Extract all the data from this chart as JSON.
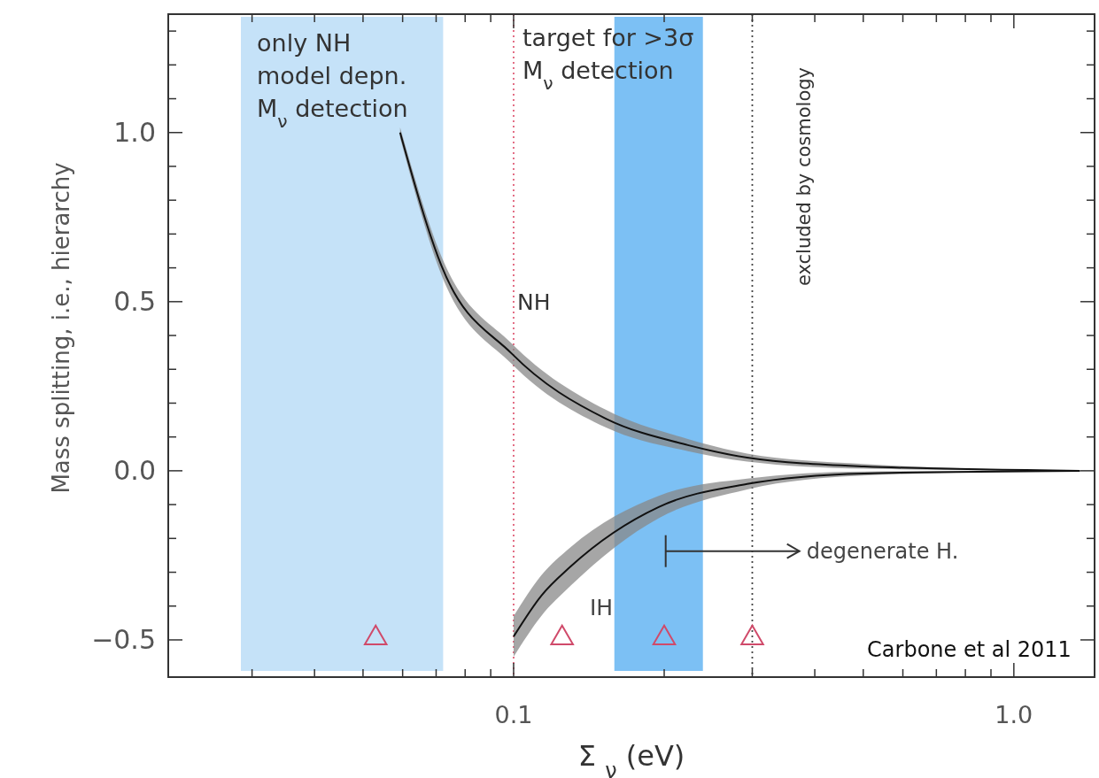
{
  "chart_data": {
    "type": "line",
    "xlabel": "Σ $_{ν}$ (eV)",
    "ylabel": "Mass splitting, i.e., hierarchy",
    "log": "x",
    "xlim": [
      0.0204,
      1.45
    ],
    "ylim": [
      -0.61,
      1.35
    ],
    "xticks": [
      {
        "value": 0.03,
        "label": null
      },
      {
        "value": 0.04,
        "label": null
      },
      {
        "value": 0.05,
        "label": null
      },
      {
        "value": 0.06,
        "label": null
      },
      {
        "value": 0.07,
        "label": null
      },
      {
        "value": 0.08,
        "label": null
      },
      {
        "value": 0.09,
        "label": null
      },
      {
        "value": 0.1,
        "label": "0.1"
      },
      {
        "value": 0.2,
        "label": null
      },
      {
        "value": 0.3,
        "label": null
      },
      {
        "value": 0.4,
        "label": null
      },
      {
        "value": 0.5,
        "label": null
      },
      {
        "value": 0.6,
        "label": null
      },
      {
        "value": 0.7,
        "label": null
      },
      {
        "value": 0.8,
        "label": null
      },
      {
        "value": 0.9,
        "label": null
      },
      {
        "value": 1.0,
        "label": "1.0"
      }
    ],
    "yticks": [
      {
        "value": -0.5,
        "label": "−0.5"
      },
      {
        "value": -0.4,
        "label": null
      },
      {
        "value": -0.3,
        "label": null
      },
      {
        "value": -0.2,
        "label": null
      },
      {
        "value": -0.1,
        "label": null
      },
      {
        "value": 0,
        "label": "0.0"
      },
      {
        "value": 0.1,
        "label": null
      },
      {
        "value": 0.2,
        "label": null
      },
      {
        "value": 0.3,
        "label": null
      },
      {
        "value": 0.4,
        "label": null
      },
      {
        "value": 0.5,
        "label": "0.5"
      },
      {
        "value": 0.6,
        "label": null
      },
      {
        "value": 0.7,
        "label": null
      },
      {
        "value": 0.8,
        "label": null
      },
      {
        "value": 0.9,
        "label": null
      },
      {
        "value": 1.0,
        "label": "1.0"
      },
      {
        "value": 1.1,
        "label": null
      },
      {
        "value": 1.2,
        "label": null
      },
      {
        "value": 1.3,
        "label": null
      }
    ],
    "bands": [
      {
        "axis": "x",
        "from": 0.0285,
        "to": 0.0723,
        "color": "#c5e2f8",
        "label": "only NH\nmodel depn.\nM$_{ν}$ detection"
      },
      {
        "axis": "x",
        "from": 0.159,
        "to": 0.239,
        "color": "#7cc0f4"
      }
    ],
    "ref_lines": [
      {
        "axis": "x",
        "value": 0.1,
        "color": "#e0607a",
        "line_style": "dotted"
      },
      {
        "axis": "x",
        "value": 0.3,
        "color": "#444444",
        "line_style": "dotted",
        "label": "excluded by cosmology"
      }
    ],
    "series": [
      {
        "color": "#111111",
        "line_style": "solid",
        "x": [
          0.0593,
          0.0717,
          0.0992,
          0.153,
          0.223,
          0.293,
          0.502,
          1.355
        ],
        "values": [
          1.0,
          0.607,
          0.346,
          0.154,
          0.076,
          0.039,
          0.013,
          0
        ],
        "lower": [
          0.985,
          0.58,
          0.316,
          0.128,
          0.058,
          0.027,
          0.006,
          0
        ],
        "upper": [
          1.015,
          0.634,
          0.376,
          0.18,
          0.094,
          0.051,
          0.02,
          0
        ]
      },
      {
        "color": "#111111",
        "line_style": "solid",
        "x": [
          0.1,
          0.1135,
          0.13,
          0.195,
          0.293,
          0.502,
          1.355
        ],
        "values": [
          -0.49,
          -0.37,
          -0.283,
          -0.107,
          -0.039,
          -0.008,
          0
        ],
        "lower": [
          -0.55,
          -0.43,
          -0.34,
          -0.14,
          -0.055,
          -0.014,
          0
        ],
        "upper": [
          -0.43,
          -0.31,
          -0.226,
          -0.074,
          -0.023,
          -0.002,
          0
        ]
      },
      {
        "type": "scatter",
        "color": "#d04a6a",
        "marker": "triangle",
        "x": [
          0.053,
          0.125,
          0.2,
          0.3
        ],
        "values": [
          -0.5,
          -0.5,
          -0.5,
          -0.5
        ]
      }
    ],
    "annotations": [
      {
        "text": "target for >3σ\nM$_{ν}$ detection",
        "x": 0.1,
        "y": 1.28
      },
      {
        "text": "NH",
        "x": 0.1,
        "y": 0.5
      },
      "IH",
      "degenerate H.",
      "Carbone et al 2011"
    ]
  }
}
